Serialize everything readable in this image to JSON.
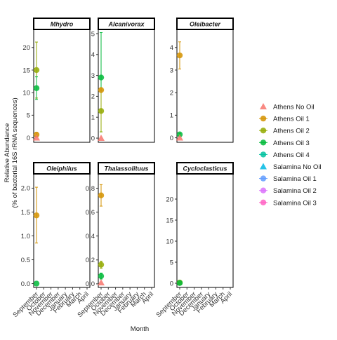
{
  "chart_data": {
    "type": "scatter",
    "xlabel": "Month",
    "ylabel": "Relative Abundance\n(% of bacterial 16S rRNA sequences)",
    "x_categories": [
      "September",
      "October",
      "November",
      "December",
      "January",
      "February",
      "March",
      "April"
    ],
    "legend": {
      "position": "right",
      "entries": [
        {
          "name": "Athens No Oil",
          "color": "#F8766D",
          "shape": "triangle"
        },
        {
          "name": "Athens Oil 1",
          "color": "#D39200",
          "shape": "circle"
        },
        {
          "name": "Athens Oil 2",
          "color": "#93AA00",
          "shape": "circle"
        },
        {
          "name": "Athens Oil 3",
          "color": "#00BA38",
          "shape": "circle"
        },
        {
          "name": "Athens Oil 4",
          "color": "#00C19F",
          "shape": "circle"
        },
        {
          "name": "Salamina No Oil",
          "color": "#00B9E3",
          "shape": "triangle"
        },
        {
          "name": "Salamina Oil 1",
          "color": "#619CFF",
          "shape": "circle"
        },
        {
          "name": "Salamina Oil 2",
          "color": "#DB72FB",
          "shape": "circle"
        },
        {
          "name": "Salamina Oil 3",
          "color": "#FF61C3",
          "shape": "circle"
        }
      ]
    },
    "panels": [
      {
        "title": "Mhydro",
        "ylim": [
          -1,
          24
        ],
        "yticks": [
          0,
          5,
          10,
          15,
          20
        ],
        "ytick_labels": [
          "0",
          "5",
          "10",
          "15",
          "20"
        ],
        "points": [
          {
            "series": "Athens Oil 2",
            "x": "September",
            "y": 15.0,
            "ymin": 8.8,
            "ymax": 21.2
          },
          {
            "series": "Athens Oil 3",
            "x": "September",
            "y": 11.0,
            "ymin": 8.5,
            "ymax": 13.5
          },
          {
            "series": "Athens Oil 1",
            "x": "September",
            "y": 0.7,
            "ymin": 0.3,
            "ymax": 1.1
          },
          {
            "series": "Athens No Oil",
            "x": "September",
            "y": 0.0,
            "ymin": 0.0,
            "ymax": 0.0
          }
        ]
      },
      {
        "title": "Alcanivorax",
        "ylim": [
          -0.2,
          5.2
        ],
        "yticks": [
          0,
          1,
          2,
          3,
          4,
          5
        ],
        "ytick_labels": [
          "0",
          "1",
          "2",
          "3",
          "4",
          "5"
        ],
        "points": [
          {
            "series": "Athens Oil 3",
            "x": "September",
            "y": 2.9,
            "ymin": 0.3,
            "ymax": 5.05
          },
          {
            "series": "Athens Oil 1",
            "x": "September",
            "y": 2.3,
            "ymin": 2.2,
            "ymax": 2.4
          },
          {
            "series": "Athens Oil 2",
            "x": "September",
            "y": 1.3,
            "ymin": 0.3,
            "ymax": 2.3
          },
          {
            "series": "Athens No Oil",
            "x": "September",
            "y": 0.0,
            "ymin": 0.0,
            "ymax": 0.0
          }
        ]
      },
      {
        "title": "Oleibacter",
        "ylim": [
          -0.2,
          4.8
        ],
        "yticks": [
          0,
          1,
          2,
          3,
          4
        ],
        "ytick_labels": [
          "0",
          "1",
          "2",
          "3",
          "4"
        ],
        "points": [
          {
            "series": "Athens Oil 1",
            "x": "September",
            "y": 3.65,
            "ymin": 3.05,
            "ymax": 4.25
          },
          {
            "series": "Athens Oil 3",
            "x": "September",
            "y": 0.15,
            "ymin": 0.1,
            "ymax": 0.2
          },
          {
            "series": "Athens No Oil",
            "x": "September",
            "y": 0.0,
            "ymin": 0.0,
            "ymax": 0.0
          }
        ]
      },
      {
        "title": "Oleiphilus",
        "ylim": [
          -0.08,
          2.3
        ],
        "yticks": [
          0,
          0.5,
          1.0,
          1.5,
          2.0
        ],
        "ytick_labels": [
          "0.0",
          "0.5",
          "1.0",
          "1.5",
          "2.0"
        ],
        "points": [
          {
            "series": "Athens Oil 1",
            "x": "September",
            "y": 1.43,
            "ymin": 0.85,
            "ymax": 2.02
          },
          {
            "series": "Athens Oil 3",
            "x": "September",
            "y": 0.0,
            "ymin": 0.0,
            "ymax": 0.0
          }
        ]
      },
      {
        "title": "Thalassolituus",
        "ylim": [
          -0.03,
          0.92
        ],
        "yticks": [
          0,
          0.2,
          0.4,
          0.6,
          0.8
        ],
        "ytick_labels": [
          "0.0",
          "0.2",
          "0.4",
          "0.6",
          "0.8"
        ],
        "points": [
          {
            "series": "Athens Oil 1",
            "x": "September",
            "y": 0.74,
            "ymin": 0.65,
            "ymax": 0.83
          },
          {
            "series": "Athens Oil 2",
            "x": "September",
            "y": 0.16,
            "ymin": 0.13,
            "ymax": 0.19
          },
          {
            "series": "Athens Oil 3",
            "x": "September",
            "y": 0.065,
            "ymin": 0.04,
            "ymax": 0.09
          },
          {
            "series": "Athens No Oil",
            "x": "September",
            "y": 0.01,
            "ymin": 0.01,
            "ymax": 0.01
          }
        ]
      },
      {
        "title": "Cycloclasticus",
        "ylim": [
          -1,
          26
        ],
        "yticks": [
          0,
          5,
          10,
          15,
          20
        ],
        "ytick_labels": [
          "0",
          "5",
          "10",
          "15",
          "20"
        ],
        "points": [
          {
            "series": "Athens Oil 2",
            "x": "September",
            "y": 0.15,
            "ymin": 0.15,
            "ymax": 0.15
          },
          {
            "series": "Athens Oil 3",
            "x": "September",
            "y": 0.05,
            "ymin": 0.05,
            "ymax": 0.05
          }
        ]
      }
    ]
  }
}
